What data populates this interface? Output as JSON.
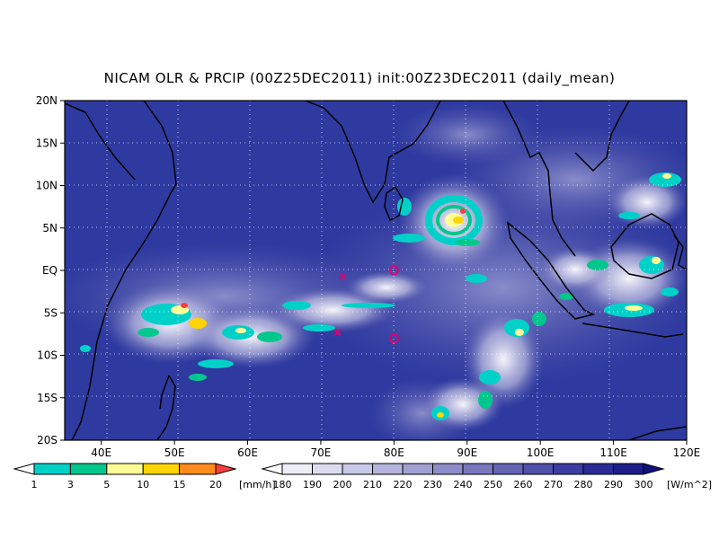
{
  "title": "NICAM OLR & PRCIP (00Z25DEC2011) init:00Z23DEC2011 (daily_mean)",
  "lat_labels": [
    "20N",
    "15N",
    "10N",
    "5N",
    "EQ",
    "5S",
    "10S",
    "15S",
    "20S"
  ],
  "lon_labels": [
    "40E",
    "50E",
    "60E",
    "70E",
    "80E",
    "90E",
    "100E",
    "110E",
    "120E"
  ],
  "precip_colorbar": {
    "unit": "[mm/h]",
    "ticks": [
      "1",
      "3",
      "5",
      "10",
      "15",
      "20"
    ],
    "colors": [
      "#ffffff",
      "#00d1c8",
      "#00c88c",
      "#ffff96",
      "#ffd400",
      "#ff8a1e",
      "#ff3c3c"
    ]
  },
  "olr_colorbar": {
    "unit": "[W/m^2]",
    "ticks": [
      "180",
      "190",
      "200",
      "210",
      "220",
      "230",
      "240",
      "250",
      "260",
      "270",
      "280",
      "290",
      "300"
    ],
    "colors": [
      "#ffffff",
      "#eeeef8",
      "#dcdcf0",
      "#c8c8e8",
      "#b4b4dc",
      "#a0a0d2",
      "#8c8cc8",
      "#7878be",
      "#6464b4",
      "#5050aa",
      "#3c3ca0",
      "#2a2a96",
      "#1c1c8a",
      "#10107e"
    ]
  },
  "markers": [
    {
      "name": "x-marker",
      "lon": 73,
      "lat": -0.7
    },
    {
      "name": "x-marker",
      "lon": 72.3,
      "lat": -7.3
    },
    {
      "name": "circle-marker",
      "lon": 80,
      "lat": 0
    },
    {
      "name": "circle-marker",
      "lon": 80,
      "lat": -8
    }
  ],
  "colors": {
    "background": "#2e3aa0",
    "grid": "#ffffff",
    "coast": "#000000",
    "marker": "#e0006e"
  }
}
